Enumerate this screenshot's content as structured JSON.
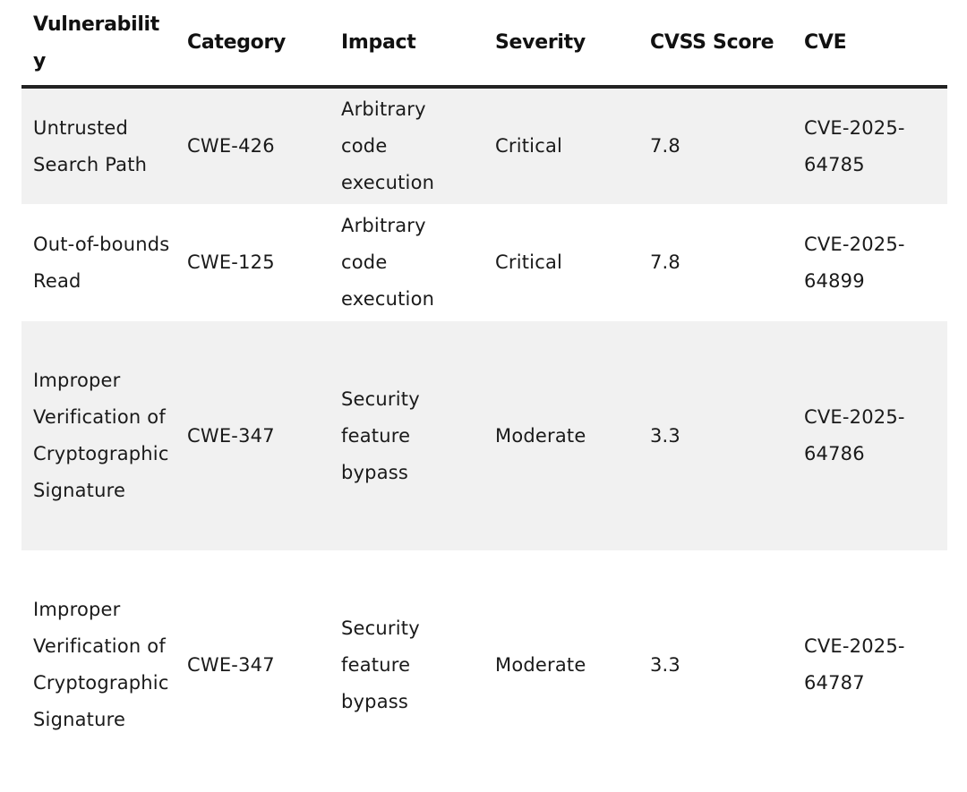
{
  "table": {
    "headers": [
      "Vulnerability",
      "Category",
      "Impact",
      "Severity",
      "CVSS Score",
      "CVE"
    ],
    "rows": [
      {
        "vulnerability": "Untrusted Search Path",
        "category": "CWE-426",
        "impact": "Arbitrary code execution",
        "severity": "Critical",
        "cvss": "7.8",
        "cve": "CVE-2025-64785"
      },
      {
        "vulnerability": "Out-of-bounds Read",
        "category": "CWE-125",
        "impact": "Arbitrary code execution",
        "severity": "Critical",
        "cvss": "7.8",
        "cve": "CVE-2025-64899"
      },
      {
        "vulnerability": "Improper Verification of Cryptographic Signature",
        "category": "CWE-347",
        "impact": "Security feature bypass",
        "severity": "Moderate",
        "cvss": "3.3",
        "cve": "CVE-2025-64786"
      },
      {
        "vulnerability": "Improper Verification of Cryptographic Signature",
        "category": "CWE-347",
        "impact": "Security feature bypass",
        "severity": "Moderate",
        "cvss": "3.3",
        "cve": "CVE-2025-64787"
      }
    ]
  }
}
